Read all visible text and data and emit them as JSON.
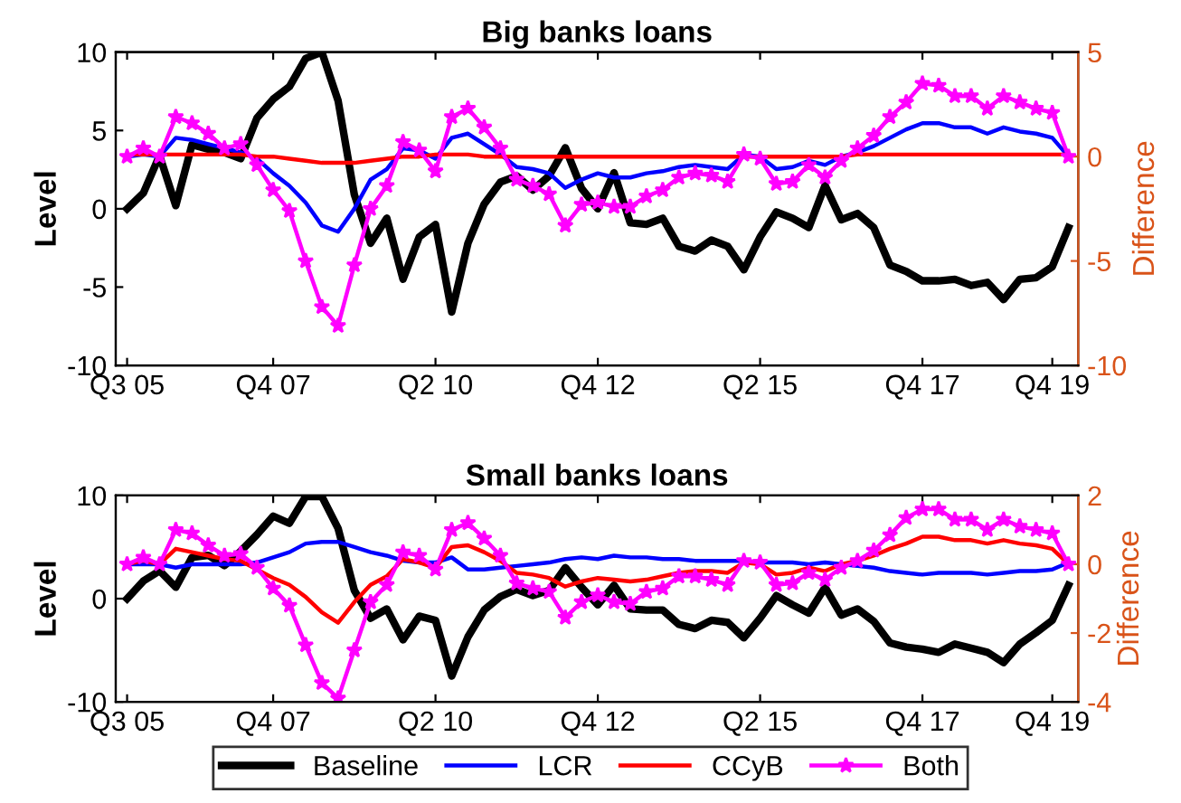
{
  "chart_data": [
    {
      "type": "line",
      "title": "Big banks loans",
      "ylabel": "Level",
      "y2label": "Difference",
      "categories": [
        "Q3 05",
        null,
        null,
        null,
        null,
        null,
        null,
        null,
        null,
        "Q4 07",
        null,
        null,
        null,
        null,
        null,
        null,
        null,
        null,
        null,
        "Q2 10",
        null,
        null,
        null,
        null,
        null,
        null,
        null,
        null,
        null,
        "Q4 12",
        null,
        null,
        null,
        null,
        null,
        null,
        null,
        null,
        null,
        "Q2 15",
        null,
        null,
        null,
        null,
        null,
        null,
        null,
        null,
        null,
        "Q4 17",
        null,
        null,
        null,
        null,
        null,
        null,
        null,
        "Q4 19",
        null
      ],
      "ylim": [
        -10,
        10
      ],
      "yticks": [
        -10,
        -5,
        0,
        5,
        10
      ],
      "y2lim": [
        -10,
        5
      ],
      "y2ticks": [
        -10,
        -5,
        0,
        5
      ],
      "grid": false,
      "legend": false,
      "line_style": "solid",
      "series": [
        {
          "color": "#000000",
          "marker": "none",
          "values": [
            0,
            1,
            3.4,
            0.2,
            4.1,
            3.8,
            3.6,
            3.2,
            5.8,
            7,
            7.8,
            9.6,
            10,
            6.9,
            0.9,
            -2.2,
            -0.6,
            -4.5,
            -1.8,
            -1,
            -6.6,
            -2.2,
            0.3,
            1.7,
            2.1,
            1.2,
            2.1,
            3.9,
            1.3,
            0,
            2.3,
            -0.9,
            -1,
            -0.6,
            -2.4,
            -2.7,
            -2,
            -2.4,
            -3.9,
            -1.8,
            -0.2,
            -0.6,
            -1.2,
            1.5,
            -0.7,
            -0.3,
            -1.2,
            -3.6,
            -4,
            -4.6,
            -4.6,
            -4.5,
            -4.9,
            -4.7,
            -5.8,
            -4.5,
            -4.4,
            -3.7,
            -1.2
          ]
        },
        {
          "color": "#0000ff",
          "axis": "y2",
          "marker": "none",
          "values": [
            0,
            0.1,
            0,
            0.9,
            0.8,
            0.6,
            0.4,
            0.2,
            -0.1,
            -0.8,
            -1.4,
            -2.2,
            -3.3,
            -3.6,
            -2.5,
            -1.1,
            -0.6,
            0.4,
            0.3,
            -0.1,
            0.9,
            1.1,
            0.6,
            0.1,
            -0.5,
            -0.6,
            -0.8,
            -1.5,
            -1.1,
            -0.8,
            -1,
            -1,
            -0.8,
            -0.7,
            -0.5,
            -0.4,
            -0.5,
            -0.6,
            0.1,
            0,
            -0.6,
            -0.5,
            -0.2,
            -0.4,
            0,
            0.2,
            0.5,
            0.9,
            1.3,
            1.6,
            1.6,
            1.4,
            1.4,
            1.1,
            1.4,
            1.2,
            1.1,
            0.9,
            0
          ]
        },
        {
          "color": "#ff0000",
          "axis": "y2",
          "marker": "none",
          "values": [
            0.1,
            0.1,
            0.1,
            0.1,
            0.1,
            0.1,
            0.1,
            0.1,
            0,
            0,
            -0.1,
            -0.2,
            -0.3,
            -0.3,
            -0.3,
            -0.2,
            -0.1,
            0,
            0,
            0.1,
            0.1,
            0.1,
            0,
            0,
            0,
            0,
            0,
            0,
            0,
            0,
            0,
            0,
            0,
            0,
            0,
            0,
            0,
            0,
            0,
            0,
            0,
            0,
            0,
            0,
            0,
            0.1,
            0.1,
            0.1,
            0.1,
            0.1,
            0.1,
            0.1,
            0.1,
            0.1,
            0.1,
            0.1,
            0.1,
            0.1,
            0.1
          ]
        },
        {
          "color": "#ff00ff",
          "axis": "y2",
          "marker": "star",
          "values": [
            0,
            0.4,
            0,
            1.9,
            1.6,
            1.1,
            0.4,
            0.6,
            -0.4,
            -1.6,
            -2.6,
            -5,
            -7.2,
            -8.1,
            -5.2,
            -2.5,
            -1.4,
            0.7,
            0.3,
            -0.7,
            1.9,
            2.3,
            1.4,
            0.4,
            -1.1,
            -1.4,
            -1.8,
            -3.3,
            -2.3,
            -2.2,
            -2.4,
            -2.4,
            -1.9,
            -1.6,
            -1,
            -0.8,
            -0.9,
            -1.2,
            0.1,
            -0.1,
            -1.3,
            -1.2,
            -0.4,
            -1,
            -0.2,
            0.4,
            1,
            1.9,
            2.6,
            3.5,
            3.4,
            2.9,
            2.9,
            2.3,
            2.9,
            2.6,
            2.3,
            2.1,
            0
          ]
        }
      ]
    },
    {
      "type": "line",
      "title": "Small banks loans",
      "ylabel": "Level",
      "y2label": "Difference",
      "categories": [
        "Q3 05",
        null,
        null,
        null,
        null,
        null,
        null,
        null,
        null,
        "Q4 07",
        null,
        null,
        null,
        null,
        null,
        null,
        null,
        null,
        null,
        "Q2 10",
        null,
        null,
        null,
        null,
        null,
        null,
        null,
        null,
        null,
        "Q4 12",
        null,
        null,
        null,
        null,
        null,
        null,
        null,
        null,
        null,
        "Q2 15",
        null,
        null,
        null,
        null,
        null,
        null,
        null,
        null,
        null,
        "Q4 17",
        null,
        null,
        null,
        null,
        null,
        null,
        null,
        "Q4 19",
        null
      ],
      "ylim": [
        -10,
        10
      ],
      "yticks": [
        -10,
        0,
        10
      ],
      "y2lim": [
        -4,
        2
      ],
      "y2ticks": [
        -4,
        -2,
        0,
        2
      ],
      "grid": false,
      "legend": "bottom",
      "line_style": "solid",
      "series": [
        {
          "name": "Baseline",
          "color": "#000000",
          "marker": "none",
          "values": [
            0,
            1.7,
            2.7,
            1.1,
            4,
            4.2,
            3.2,
            4.6,
            6.2,
            8,
            7.3,
            9.9,
            9.9,
            6.8,
            0.8,
            -1.9,
            -1,
            -4,
            -1.7,
            -2.1,
            -7.5,
            -3.7,
            -1.1,
            0.2,
            0.9,
            0.3,
            0.8,
            3,
            1.1,
            -0.6,
            1.3,
            -1,
            -1.1,
            -1.1,
            -2.5,
            -2.9,
            -2.1,
            -2.3,
            -3.8,
            -1.9,
            0.3,
            -0.6,
            -1.4,
            1.1,
            -1.6,
            -1,
            -2.2,
            -4.3,
            -4.7,
            -4.9,
            -5.2,
            -4.4,
            -4.8,
            -5.2,
            -6.2,
            -4.4,
            -3.3,
            -2.1,
            1.3
          ]
        },
        {
          "name": "LCR",
          "color": "#0000ff",
          "axis": "y2",
          "marker": "none",
          "values": [
            0,
            0,
            0,
            -0.1,
            0,
            0,
            0,
            0,
            0.05,
            0.2,
            0.35,
            0.6,
            0.65,
            0.65,
            0.5,
            0.35,
            0.25,
            0.1,
            0.05,
            0.05,
            0.2,
            -0.15,
            -0.15,
            -0.1,
            -0.05,
            0,
            0.05,
            0.15,
            0.2,
            0.15,
            0.25,
            0.2,
            0.2,
            0.15,
            0.15,
            0.1,
            0.1,
            0.1,
            0.1,
            0.05,
            0.05,
            0.05,
            0,
            0.05,
            0,
            -0.05,
            -0.1,
            -0.2,
            -0.25,
            -0.3,
            -0.25,
            -0.25,
            -0.25,
            -0.3,
            -0.25,
            -0.2,
            -0.2,
            -0.15,
            0.05
          ]
        },
        {
          "name": "CCyB",
          "color": "#ff0000",
          "axis": "y2",
          "marker": "none",
          "values": [
            0,
            0.1,
            0,
            0.45,
            0.35,
            0.25,
            0.15,
            0.1,
            -0.15,
            -0.4,
            -0.6,
            -0.95,
            -1.4,
            -1.7,
            -1.1,
            -0.6,
            -0.35,
            0.15,
            0.05,
            -0.1,
            0.5,
            0.55,
            0.35,
            0.1,
            -0.25,
            -0.3,
            -0.4,
            -0.65,
            -0.5,
            -0.4,
            -0.45,
            -0.5,
            -0.45,
            -0.35,
            -0.25,
            -0.2,
            -0.2,
            -0.25,
            0.05,
            0,
            -0.3,
            -0.25,
            -0.1,
            -0.2,
            0,
            0.1,
            0.25,
            0.45,
            0.6,
            0.8,
            0.8,
            0.7,
            0.7,
            0.6,
            0.7,
            0.6,
            0.55,
            0.45,
            0
          ]
        },
        {
          "name": "Both",
          "color": "#ff00ff",
          "axis": "y2",
          "marker": "star",
          "values": [
            0,
            0.2,
            0,
            1,
            0.9,
            0.55,
            0.25,
            0.3,
            -0.1,
            -0.7,
            -1.2,
            -2.35,
            -3.45,
            -3.9,
            -2.5,
            -1.1,
            -0.6,
            0.35,
            0.25,
            -0.15,
            1,
            1.2,
            0.75,
            0.25,
            -0.55,
            -0.7,
            -0.8,
            -1.55,
            -1.1,
            -0.9,
            -1.1,
            -1.15,
            -0.8,
            -0.7,
            -0.35,
            -0.35,
            -0.45,
            -0.6,
            0.1,
            0.05,
            -0.6,
            -0.55,
            -0.25,
            -0.45,
            -0.1,
            0.1,
            0.4,
            0.85,
            1.35,
            1.6,
            1.6,
            1.3,
            1.3,
            1,
            1.3,
            1.1,
            1,
            0.9,
            0
          ]
        }
      ]
    }
  ]
}
